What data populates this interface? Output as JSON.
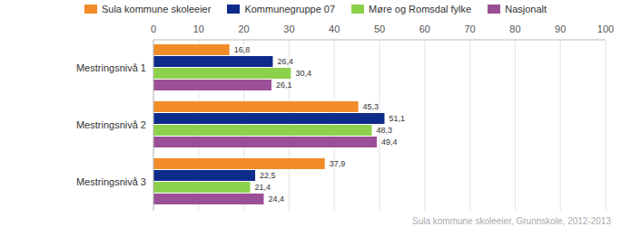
{
  "chart_data": {
    "type": "bar",
    "orientation": "horizontal",
    "categories": [
      "Mestringsnivå 1",
      "Mestringsnivå 2",
      "Mestringsnivå 3"
    ],
    "series": [
      {
        "name": "Sula kommune skoleeier",
        "color": "#f28c28",
        "values": [
          16.8,
          45.3,
          37.9
        ],
        "value_labels": [
          "16,8",
          "45,3",
          "37,9"
        ]
      },
      {
        "name": "Kommunegruppe 07",
        "color": "#0d2b8a",
        "values": [
          26.4,
          51.1,
          22.5
        ],
        "value_labels": [
          "26,4",
          "51,1",
          "22,5"
        ]
      },
      {
        "name": "Møre og Romsdal fylke",
        "color": "#8cd14c",
        "values": [
          30.4,
          48.3,
          21.4
        ],
        "value_labels": [
          "30,4",
          "48,3",
          "21,4"
        ]
      },
      {
        "name": "Nasjonalt",
        "color": "#9b4f96",
        "values": [
          26.1,
          49.4,
          24.4
        ],
        "value_labels": [
          "26,1",
          "49,4",
          "24,4"
        ]
      }
    ],
    "xlim": [
      0,
      100
    ],
    "xticks": [
      0,
      10,
      20,
      30,
      40,
      50,
      60,
      70,
      80,
      90,
      100
    ],
    "grid": true,
    "legend": "top",
    "data_labels": true,
    "annotations": [
      "Sula kommune skoleeier, Grunnskole, 2012-2013"
    ]
  }
}
